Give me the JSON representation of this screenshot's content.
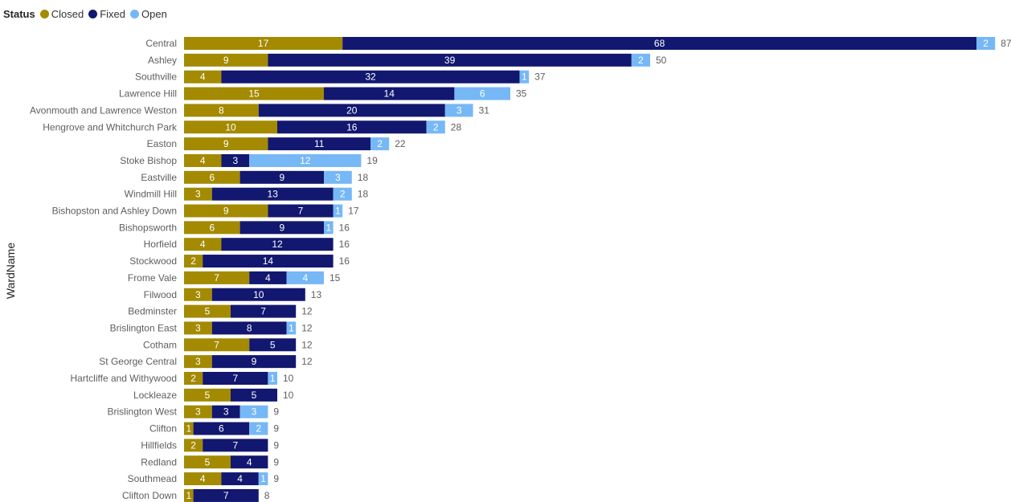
{
  "legend": {
    "title": "Status",
    "items": [
      {
        "label": "Closed",
        "color": "#A38A00"
      },
      {
        "label": "Fixed",
        "color": "#12176F"
      },
      {
        "label": "Open",
        "color": "#76B8F5"
      }
    ]
  },
  "chart_data": {
    "type": "bar",
    "orientation": "horizontal",
    "stacked": true,
    "ylabel": "WardName",
    "xlabel": "",
    "legend_position": "top-left",
    "grid": false,
    "categories": [
      "Central",
      "Ashley",
      "Southville",
      "Lawrence Hill",
      "Avonmouth and Lawrence Weston",
      "Hengrove and Whitchurch Park",
      "Easton",
      "Stoke Bishop",
      "Eastville",
      "Windmill Hill",
      "Bishopston and Ashley Down",
      "Bishopsworth",
      "Horfield",
      "Stockwood",
      "Frome Vale",
      "Filwood",
      "Bedminster",
      "Brislington East",
      "Cotham",
      "St George Central",
      "Hartcliffe and Withywood",
      "Lockleaze",
      "Brislington West",
      "Clifton",
      "Hillfields",
      "Redland",
      "Southmead",
      "Clifton Down"
    ],
    "series": [
      {
        "name": "Closed",
        "color": "#A38A00",
        "values": [
          17,
          9,
          4,
          15,
          8,
          10,
          9,
          4,
          6,
          3,
          9,
          6,
          4,
          2,
          7,
          3,
          5,
          3,
          7,
          3,
          2,
          5,
          3,
          1,
          2,
          5,
          4,
          1
        ]
      },
      {
        "name": "Fixed",
        "color": "#12176F",
        "values": [
          68,
          39,
          32,
          14,
          20,
          16,
          11,
          3,
          9,
          13,
          7,
          9,
          12,
          14,
          4,
          10,
          7,
          8,
          5,
          9,
          7,
          5,
          3,
          6,
          7,
          4,
          4,
          7
        ]
      },
      {
        "name": "Open",
        "color": "#76B8F5",
        "values": [
          2,
          2,
          1,
          6,
          3,
          2,
          2,
          12,
          3,
          2,
          1,
          1,
          0,
          0,
          4,
          0,
          0,
          1,
          0,
          0,
          1,
          0,
          3,
          2,
          0,
          0,
          1,
          0
        ]
      }
    ],
    "totals": [
      87,
      50,
      37,
      35,
      31,
      28,
      22,
      19,
      18,
      18,
      17,
      16,
      16,
      16,
      15,
      13,
      12,
      12,
      12,
      12,
      10,
      10,
      9,
      9,
      9,
      9,
      9,
      8
    ]
  }
}
